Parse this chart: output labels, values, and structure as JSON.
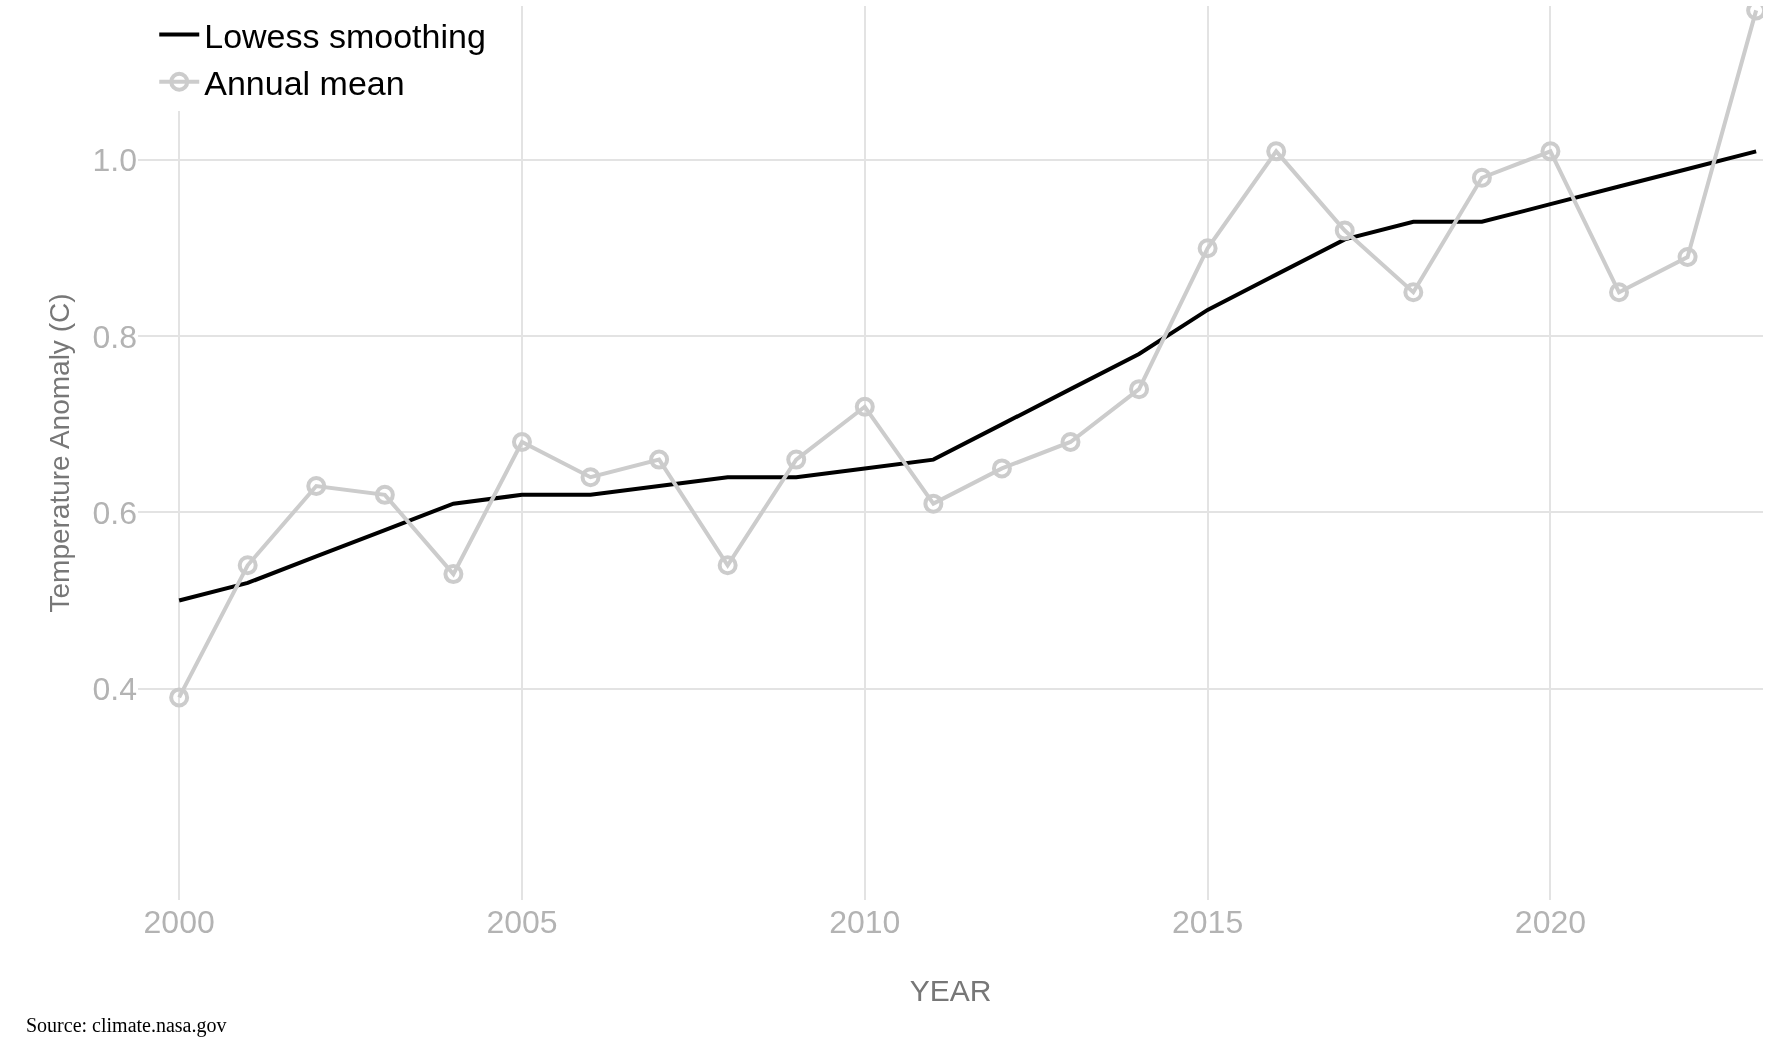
{
  "chart_data": {
    "type": "line",
    "xlabel": "YEAR",
    "ylabel": "Temperature Anomaly (C)",
    "x": [
      2000,
      2001,
      2002,
      2003,
      2004,
      2005,
      2006,
      2007,
      2008,
      2009,
      2010,
      2011,
      2012,
      2013,
      2014,
      2015,
      2016,
      2017,
      2018,
      2019,
      2020,
      2021,
      2022,
      2023
    ],
    "series": [
      {
        "name": "Lowess smoothing",
        "color": "#000000",
        "marker": "none",
        "values": [
          0.5,
          0.52,
          0.55,
          0.58,
          0.61,
          0.62,
          0.62,
          0.63,
          0.64,
          0.64,
          0.65,
          0.66,
          0.7,
          0.74,
          0.78,
          0.83,
          0.87,
          0.91,
          0.93,
          0.93,
          0.95,
          0.97,
          0.99,
          1.01
        ]
      },
      {
        "name": "Annual mean",
        "color": "#cccccc",
        "marker": "circle",
        "values": [
          0.39,
          0.54,
          0.63,
          0.62,
          0.53,
          0.68,
          0.64,
          0.66,
          0.54,
          0.66,
          0.72,
          0.61,
          0.65,
          0.68,
          0.74,
          0.9,
          1.01,
          0.92,
          0.85,
          0.98,
          1.01,
          0.85,
          0.89,
          1.17
        ]
      }
    ],
    "xlim": [
      1999.4,
      2023.1
    ],
    "xticks": [
      2000,
      2005,
      2010,
      2015,
      2020
    ],
    "ylim": [
      0.16,
      1.175
    ],
    "yticks": [
      {
        "value": 0.4,
        "label": "0.4"
      },
      {
        "value": 0.6,
        "label": "0.6"
      },
      {
        "value": 0.8,
        "label": "0.8"
      },
      {
        "value": 1.0,
        "label": "1.0"
      }
    ],
    "grid": true,
    "legend": "top left",
    "annotations": [
      "Source: climate.nasa.gov"
    ]
  }
}
